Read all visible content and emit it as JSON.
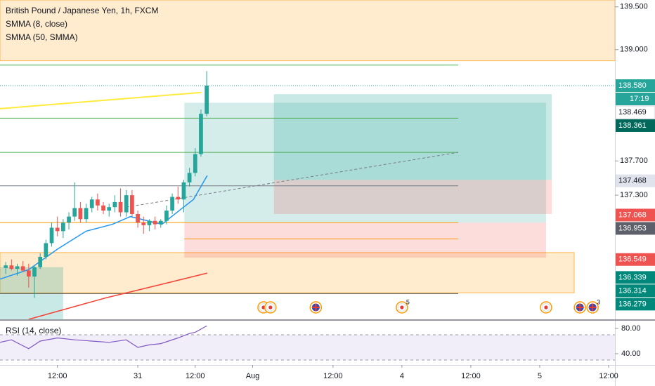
{
  "chart_data": {
    "type": "candlestick",
    "title": "British Pound / Japanese Yen, 1h, FXCM",
    "x": [
      -23,
      -22,
      -21,
      -20,
      -19,
      -18,
      -17,
      -16,
      -15,
      -14,
      -13,
      -12,
      -11,
      -10,
      -9,
      -8,
      -7,
      -6,
      -5,
      -4,
      -3,
      -2,
      -1,
      0,
      1,
      2,
      3,
      4,
      5,
      6,
      7,
      8,
      9,
      10,
      11,
      12
    ],
    "open": [
      136.45,
      136.48,
      136.44,
      136.47,
      136.42,
      136.35,
      136.46,
      136.58,
      136.74,
      136.92,
      136.88,
      136.98,
      137.05,
      137.15,
      137.02,
      137.15,
      137.25,
      137.18,
      137.12,
      137.16,
      137.22,
      137.1,
      137.3,
      137.08,
      136.98,
      136.95,
      137.0,
      136.96,
      137.0,
      137.12,
      137.28,
      137.25,
      137.45,
      137.56,
      137.78,
      138.25
    ],
    "high": [
      136.52,
      136.55,
      136.5,
      136.53,
      136.5,
      136.48,
      136.62,
      136.78,
      136.98,
      137.05,
      137.02,
      137.1,
      137.45,
      137.22,
      137.2,
      137.28,
      137.32,
      137.22,
      137.2,
      137.3,
      137.38,
      137.36,
      137.36,
      137.12,
      137.05,
      137.02,
      137.05,
      137.02,
      137.18,
      137.32,
      137.4,
      137.48,
      137.62,
      137.85,
      138.3,
      138.75
    ],
    "low": [
      136.38,
      136.42,
      136.36,
      136.4,
      136.22,
      136.1,
      136.44,
      136.55,
      136.7,
      136.82,
      136.8,
      136.9,
      137.0,
      136.98,
      136.98,
      137.1,
      137.12,
      137.08,
      137.05,
      137.1,
      137.05,
      137.05,
      137.05,
      136.92,
      136.85,
      136.88,
      136.9,
      136.92,
      136.96,
      137.08,
      137.2,
      137.1,
      137.4,
      137.52,
      137.75,
      138.22
    ],
    "close": [
      136.48,
      136.44,
      136.47,
      136.42,
      136.35,
      136.46,
      136.58,
      136.74,
      136.92,
      136.88,
      136.98,
      137.05,
      137.15,
      137.02,
      137.15,
      137.25,
      137.18,
      137.12,
      137.16,
      137.22,
      137.1,
      137.3,
      137.08,
      136.98,
      136.95,
      137.0,
      136.96,
      137.0,
      137.12,
      137.28,
      137.25,
      137.45,
      137.56,
      137.78,
      138.25,
      138.58
    ],
    "up_color": "#26a69a",
    "down_color": "#ef5350",
    "xlim": [
      -24,
      83.1
    ],
    "xticks": [
      {
        "value": -14,
        "label": "12:00"
      },
      {
        "value": 0,
        "label": "31"
      },
      {
        "value": 10,
        "label": "12:00"
      },
      {
        "value": 20,
        "label": "Aug"
      },
      {
        "value": 34,
        "label": "12:00"
      },
      {
        "value": 46,
        "label": "4"
      },
      {
        "value": 58,
        "label": "12:00"
      },
      {
        "value": 70,
        "label": "5"
      },
      {
        "value": 82,
        "label": "12:00"
      }
    ],
    "ylim": [
      135.85,
      139.58
    ],
    "yticks": [
      {
        "value": 139.5,
        "label": "139.500"
      },
      {
        "value": 139.0,
        "label": "139.000"
      },
      {
        "value": 137.7,
        "label": "137.700"
      },
      {
        "value": 137.3,
        "label": "137.300"
      }
    ],
    "series": [
      {
        "name": "SMMA (8, close)",
        "color": "#2196f3",
        "x": [
          -24,
          -19,
          -14,
          -9,
          -4.4,
          -1.3,
          4.2,
          7.2,
          9.7,
          12.1
        ],
        "values": [
          136.32,
          136.43,
          136.67,
          136.88,
          136.96,
          137.05,
          136.96,
          137.12,
          137.25,
          137.53
        ]
      },
      {
        "name": "SMMA (50, SMMA)",
        "color": "#f44336",
        "x": [
          -19,
          -5.6,
          4.2,
          12.1
        ],
        "values": [
          135.85,
          136.1,
          136.26,
          136.39
        ]
      }
    ],
    "trend_lines": [
      {
        "color": "#ffeb3b",
        "dashed": false,
        "x": [
          -24,
          11.1
        ],
        "values": [
          138.31,
          138.5
        ]
      },
      {
        "color": "#787b86",
        "dashed": true,
        "x": [
          -2,
          55.8
        ],
        "values": [
          137.16,
          137.8
        ]
      }
    ],
    "zones": [
      {
        "color": "rgba(255,183,77,0.28)",
        "border": "#ffb74d",
        "x": [
          -24,
          83.1
        ],
        "values": [
          138.87,
          139.58
        ]
      },
      {
        "color": "rgba(255,183,77,0.28)",
        "border": "#ffb74d",
        "x": [
          -24,
          76
        ],
        "values": [
          136.16,
          136.63
        ]
      },
      {
        "color": "rgba(38,166,154,0.25)",
        "border": null,
        "x": [
          -24,
          -13
        ],
        "values": [
          135.85,
          136.46
        ]
      },
      {
        "color": "rgba(38,166,154,0.2)",
        "border": null,
        "x": [
          8.1,
          71.1
        ],
        "values": [
          136.98,
          138.38
        ]
      },
      {
        "color": "rgba(239,83,80,0.2)",
        "border": null,
        "x": [
          8.1,
          71.1
        ],
        "values": [
          136.57,
          136.98
        ]
      },
      {
        "color": "rgba(38,166,154,0.25)",
        "border": null,
        "x": [
          23.7,
          72.1
        ],
        "values": [
          137.48,
          138.48
        ]
      },
      {
        "color": "rgba(239,83,80,0.2)",
        "border": null,
        "x": [
          23.7,
          72.1
        ],
        "values": [
          137.08,
          137.48
        ]
      }
    ],
    "levels": [
      {
        "value": 138.82,
        "color": "#4caf50",
        "x": [
          -24,
          55.8
        ]
      },
      {
        "value": 138.2,
        "color": "#4caf50",
        "x": [
          -24,
          55.8
        ]
      },
      {
        "value": 137.8,
        "color": "#4caf50",
        "x": [
          -24,
          55.8
        ]
      },
      {
        "value": 137.41,
        "color": "#787b86",
        "x": [
          -24,
          55.8
        ]
      },
      {
        "value": 136.98,
        "color": "#ff9800",
        "x": [
          -24,
          55.8
        ]
      },
      {
        "value": 136.79,
        "color": "#ff9800",
        "x": [
          8.1,
          55.8
        ]
      },
      {
        "value": 136.15,
        "color": "#555555",
        "x": [
          -24,
          55.8
        ]
      }
    ],
    "price_labels": [
      {
        "value": 138.58,
        "label": "138.580",
        "color": "#26a69a",
        "line": true
      },
      {
        "value": 138.469,
        "label": "138.469",
        "color": "#ffffff"
      },
      {
        "value": 138.361,
        "label": "138.361",
        "color": "#00695c"
      },
      {
        "value": 137.468,
        "label": "137.468",
        "color": "#e0e3eb"
      },
      {
        "value": 137.068,
        "label": "137.068",
        "color": "#ef5350"
      },
      {
        "value": 136.953,
        "label": "136.953",
        "color": "#5d606b"
      },
      {
        "value": 136.549,
        "label": "136.549",
        "color": "#ef5350"
      },
      {
        "value": 136.339,
        "label": "136.339",
        "color": "#00897b"
      },
      {
        "value": 136.314,
        "label": "136.314",
        "color": "#00897b"
      },
      {
        "value": 136.279,
        "label": "136.279",
        "color": "#00897b"
      }
    ],
    "countdown": "17:19",
    "rsi": {
      "name": "RSI (14, close)",
      "color": "#7e57c2",
      "x": [
        -24,
        -22,
        -19,
        -17,
        -14,
        -11,
        -8,
        -5,
        -2,
        0,
        2,
        4,
        7,
        9,
        10,
        12
      ],
      "values": [
        58,
        62,
        48,
        60,
        65,
        62,
        60,
        58,
        62,
        50,
        54,
        56,
        65,
        72,
        74,
        84
      ],
      "ylim": [
        22.2,
        93.3
      ],
      "yticks": [
        {
          "value": 80,
          "label": "80.00"
        },
        {
          "value": 40,
          "label": "40.00"
        }
      ],
      "band": [
        30,
        70
      ]
    },
    "events": [
      {
        "x": 21.9,
        "kind": "jp"
      },
      {
        "x": 23.1,
        "kind": "jp"
      },
      {
        "x": 31,
        "kind": "uk"
      },
      {
        "x": 46,
        "kind": "jp",
        "count": 5
      },
      {
        "x": 71.1,
        "kind": "jp"
      },
      {
        "x": 77,
        "kind": "uk"
      },
      {
        "x": 79.2,
        "kind": "uk",
        "count": 3
      }
    ]
  }
}
